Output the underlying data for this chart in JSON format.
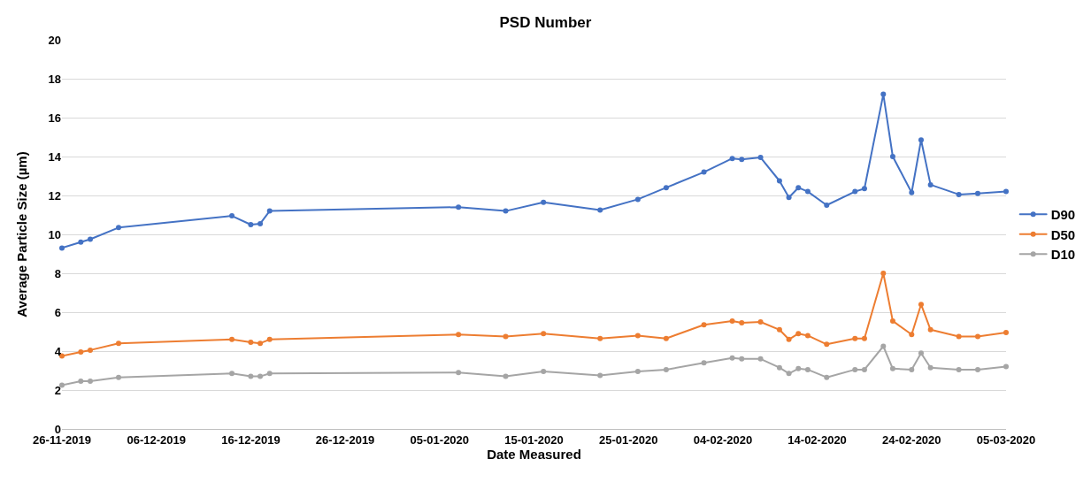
{
  "chart_data": {
    "type": "line",
    "title": "PSD Number",
    "xlabel": "Date Measured",
    "ylabel": "Average Particle Size (µm)",
    "x": [
      "2019-11-26",
      "2019-11-28",
      "2019-11-29",
      "2019-12-02",
      "2019-12-14",
      "2019-12-16",
      "2019-12-17",
      "2019-12-18",
      "2020-01-07",
      "2020-01-12",
      "2020-01-16",
      "2020-01-22",
      "2020-01-26",
      "2020-01-29",
      "2020-02-02",
      "2020-02-05",
      "2020-02-06",
      "2020-02-08",
      "2020-02-10",
      "2020-02-11",
      "2020-02-12",
      "2020-02-13",
      "2020-02-15",
      "2020-02-18",
      "2020-02-19",
      "2020-02-21",
      "2020-02-22",
      "2020-02-24",
      "2020-02-25",
      "2020-02-26",
      "2020-02-29",
      "2020-03-02",
      "2020-03-05"
    ],
    "series": [
      {
        "name": "D90",
        "color": "#4472c4",
        "values": [
          9.3,
          9.6,
          9.75,
          10.35,
          10.95,
          10.5,
          10.55,
          11.2,
          11.4,
          11.2,
          11.65,
          11.25,
          11.8,
          12.4,
          13.2,
          13.9,
          13.85,
          13.95,
          12.75,
          11.9,
          12.4,
          12.2,
          11.5,
          12.2,
          12.35,
          17.2,
          14.0,
          12.15,
          14.85,
          12.55,
          12.05,
          12.1,
          12.2
        ]
      },
      {
        "name": "D50",
        "color": "#ed7d31",
        "values": [
          3.75,
          3.95,
          4.05,
          4.4,
          4.6,
          4.45,
          4.4,
          4.6,
          4.85,
          4.75,
          4.9,
          4.65,
          4.8,
          4.65,
          5.35,
          5.55,
          5.45,
          5.5,
          5.1,
          4.6,
          4.9,
          4.8,
          4.35,
          4.65,
          4.65,
          8.0,
          5.55,
          4.85,
          6.4,
          5.1,
          4.75,
          4.75,
          4.95
        ]
      },
      {
        "name": "D10",
        "color": "#a5a5a5",
        "values": [
          2.25,
          2.45,
          2.45,
          2.65,
          2.85,
          2.7,
          2.7,
          2.85,
          2.9,
          2.7,
          2.95,
          2.75,
          2.95,
          3.05,
          3.4,
          3.65,
          3.6,
          3.6,
          3.15,
          2.85,
          3.1,
          3.05,
          2.65,
          3.05,
          3.05,
          4.25,
          3.1,
          3.05,
          3.9,
          3.15,
          3.05,
          3.05,
          3.2
        ]
      }
    ],
    "xlim": [
      "2019-11-26",
      "2020-03-05"
    ],
    "xticks": [
      {
        "value": "2019-11-26",
        "label": "26-11-2019"
      },
      {
        "value": "2019-12-06",
        "label": "06-12-2019"
      },
      {
        "value": "2019-12-16",
        "label": "16-12-2019"
      },
      {
        "value": "2019-12-26",
        "label": "26-12-2019"
      },
      {
        "value": "2020-01-05",
        "label": "05-01-2020"
      },
      {
        "value": "2020-01-15",
        "label": "15-01-2020"
      },
      {
        "value": "2020-01-25",
        "label": "25-01-2020"
      },
      {
        "value": "2020-02-04",
        "label": "04-02-2020"
      },
      {
        "value": "2020-02-14",
        "label": "14-02-2020"
      },
      {
        "value": "2020-02-24",
        "label": "24-02-2020"
      },
      {
        "value": "2020-03-05",
        "label": "05-03-2020"
      }
    ],
    "ylim": [
      0,
      20
    ],
    "yticks": [
      0,
      2,
      4,
      6,
      8,
      10,
      12,
      14,
      16,
      18,
      20
    ],
    "grid": "y",
    "legend": "right",
    "marker": "circle",
    "line_style": "solid"
  }
}
